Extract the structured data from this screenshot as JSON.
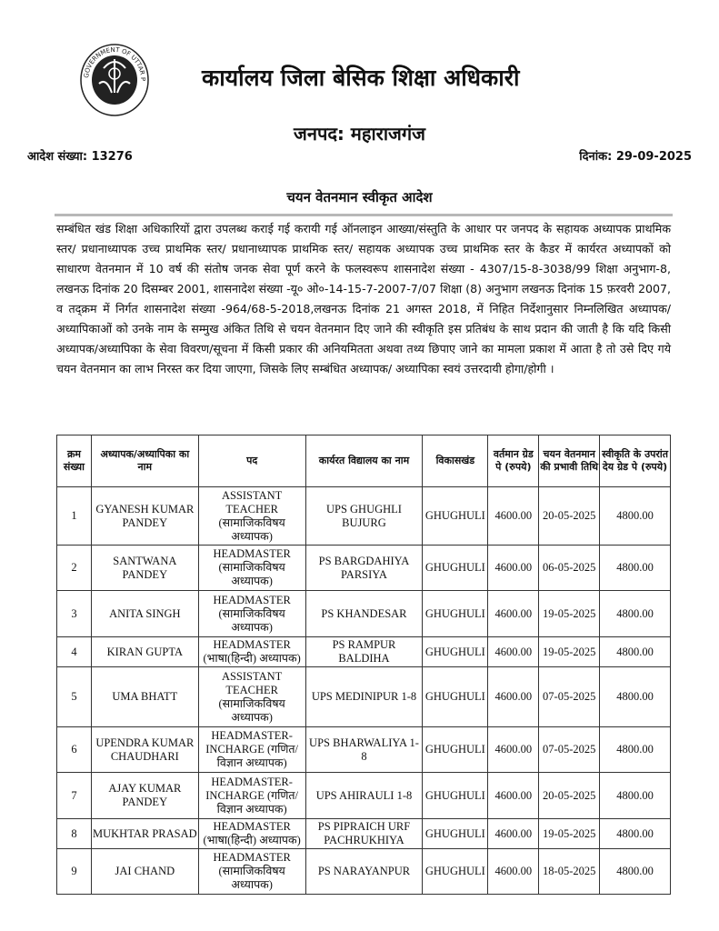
{
  "header": {
    "logo_text": "GOVERNMENT OF UTTAR PRADESH",
    "office_title": "कार्यालय जिला बेसिक शिक्षा अधिकारी",
    "district": "जनपद: महाराजगंज",
    "order_number": "आदेश संख्या: 13276",
    "date": "दिनांक: 29-09-2025",
    "subject": "चयन वेतनमान स्वीकृत आदेश"
  },
  "body_paragraph": "सम्बंधित खंड शिक्षा अधिकारियों द्वारा उपलब्ध कराई गई करायी गई ऑनलाइन आख्या/संस्तुति के आधार पर जनपद के सहायक अध्यापक प्राथमिक स्तर/ प्रधानाध्यापक उच्च प्राथमिक स्तर/ प्रधानाध्यापक प्राथमिक स्तर/ सहायक अध्यापक उच्च प्राथमिक स्तर के कैडर में कार्यरत अध्यापकों को साधारण वेतनमान में 10 वर्ष की संतोष जनक सेवा पूर्ण करने के फलस्वरूप शासनादेश संख्या - 4307/15-8-3038/99 शिक्षा अनुभाग-8, लखनऊ दिनांक 20 दिसम्बर 2001, शासनादेश संख्या -यू० ओ०-14-15-7-2007-7/07 शिक्षा (8) अनुभाग लखनऊ दिनांक 15 फ़रवरी 2007, व तद्क्रम में निर्गत शासनादेश संख्या -964/68-5-2018,लखनऊ दिनांक 21 अगस्त 2018, में निहित निर्देशानुसार निम्नलिखित अध्यापक/अध्यापिकाओं को उनके नाम के सम्मुख अंकित तिथि से चयन वेतनमान दिए जाने की स्वीकृति इस प्रतिबंध के साथ प्रदान की जाती है कि यदि किसी अध्यापक/अध्यापिका के सेवा विवरण/सूचना में किसी प्रकार की अनियमितता अथवा तथ्य छिपाए जाने का मामला प्रकाश में आता है तो उसे दिए गये चयन वेतनमान का लाभ निरस्त कर दिया जाएगा, जिसके लिए सम्बंधित अध्यापक/ अध्यापिका स्वयं उत्तरदायी होगा/होगी ।",
  "table": {
    "columns": [
      "क्रम संख्या",
      "अध्यापक/अध्यापिका का नाम",
      "पद",
      "कार्यरत विद्यालय का नाम",
      "विकासखंड",
      "वर्तमान ग्रेड पे (रुपये)",
      "चयन वेतनमान की प्रभावी तिथि",
      "स्वीकृति के उपरांत देय ग्रेड पे (रुपये)"
    ],
    "rows": [
      [
        "1",
        "GYANESH KUMAR PANDEY",
        "ASSISTANT TEACHER (सामाजिकविषय अध्यापक)",
        "UPS GHUGHLI BUJURG",
        "GHUGHULI",
        "4600.00",
        "20-05-2025",
        "4800.00"
      ],
      [
        "2",
        "SANTWANA PANDEY",
        "HEADMASTER (सामाजिकविषय अध्यापक)",
        "PS BARGDAHIYA PARSIYA",
        "GHUGHULI",
        "4600.00",
        "06-05-2025",
        "4800.00"
      ],
      [
        "3",
        "ANITA SINGH",
        "HEADMASTER (सामाजिकविषय अध्यापक)",
        "PS KHANDESAR",
        "GHUGHULI",
        "4600.00",
        "19-05-2025",
        "4800.00"
      ],
      [
        "4",
        "KIRAN GUPTA",
        "HEADMASTER (भाषा(हिन्दी) अध्यापक)",
        "PS RAMPUR BALDIHA",
        "GHUGHULI",
        "4600.00",
        "19-05-2025",
        "4800.00"
      ],
      [
        "5",
        "UMA BHATT",
        "ASSISTANT TEACHER (सामाजिकविषय अध्यापक)",
        "UPS MEDINIPUR 1-8",
        "GHUGHULI",
        "4600.00",
        "07-05-2025",
        "4800.00"
      ],
      [
        "6",
        "UPENDRA KUMAR CHAUDHARI",
        "HEADMASTER-INCHARGE (गणित/ विज्ञान अध्यापक)",
        "UPS BHARWALIYA 1-8",
        "GHUGHULI",
        "4600.00",
        "07-05-2025",
        "4800.00"
      ],
      [
        "7",
        "AJAY KUMAR PANDEY",
        "HEADMASTER-INCHARGE (गणित/ विज्ञान अध्यापक)",
        "UPS AHIRAULI 1-8",
        "GHUGHULI",
        "4600.00",
        "20-05-2025",
        "4800.00"
      ],
      [
        "8",
        "MUKHTAR PRASAD",
        "HEADMASTER (भाषा(हिन्दी) अध्यापक)",
        "PS PIPRAICH URF PACHRUKHIYA",
        "GHUGHULI",
        "4600.00",
        "19-05-2025",
        "4800.00"
      ],
      [
        "9",
        "JAI CHAND",
        "HEADMASTER (सामाजिकविषय अध्यापक)",
        "PS NARAYANPUR",
        "GHUGHULI",
        "4600.00",
        "18-05-2025",
        "4800.00"
      ]
    ]
  }
}
